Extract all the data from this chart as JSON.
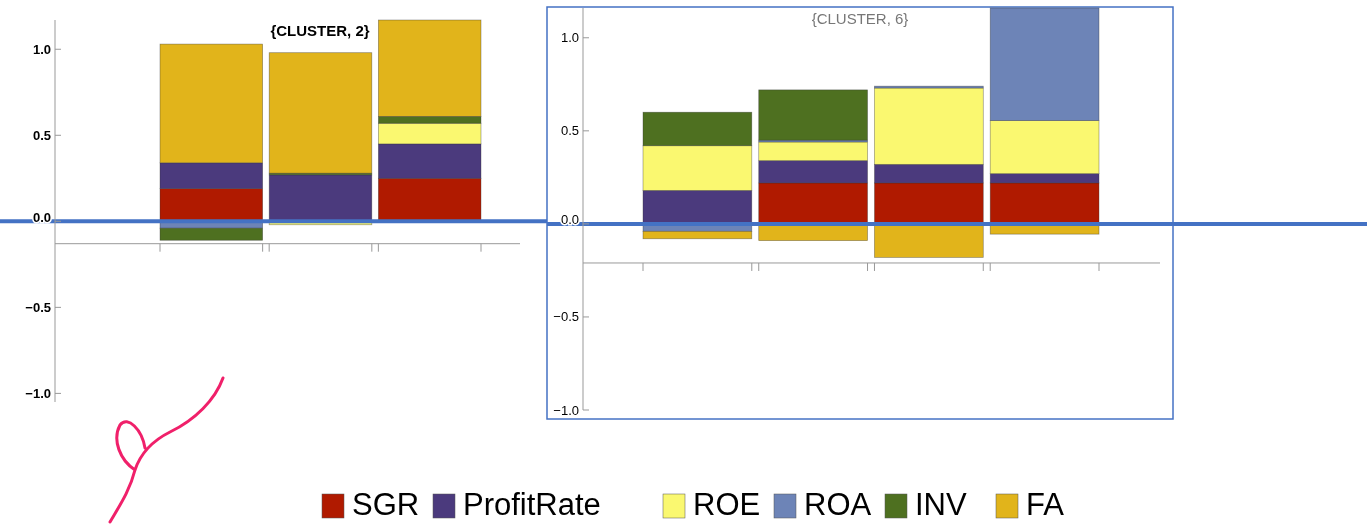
{
  "chart_data": [
    {
      "type": "bar",
      "title": "{CLUSTER, 2}",
      "stacked": true,
      "categories": [
        null,
        null,
        null
      ],
      "ylim": [
        -1.05,
        1.17
      ],
      "yticks": [
        {
          "value": -1,
          "label": "−1.0"
        },
        {
          "value": -0.5,
          "label": "−0.5"
        },
        {
          "value": 0,
          "label": "0.0"
        },
        {
          "value": 0.5,
          "label": "0.5"
        },
        {
          "value": 1,
          "label": "1.0"
        }
      ],
      "series": [
        {
          "color": "#b01a00",
          "values": [
            0.19,
            null,
            0.25
          ]
        },
        {
          "color": "#4b3a7d",
          "values": [
            0.15,
            0.27,
            0.2
          ]
        },
        {
          "color": "#faf870",
          "values": [
            null,
            -0.02,
            0.12
          ]
        },
        {
          "color": "#6d84b7",
          "values": [
            -0.04,
            0.0,
            0.0
          ]
        },
        {
          "color": "#4e7020",
          "values": [
            -0.07,
            0.01,
            0.04
          ]
        },
        {
          "color": "#e1b41b",
          "values": [
            0.69,
            0.7,
            0.56
          ]
        }
      ],
      "ref_lines": [
        {
          "axis": "y",
          "value": 0,
          "color": "#4472c4"
        },
        {
          "axis": "y",
          "value": -0.13,
          "color": "#999999"
        }
      ]
    },
    {
      "type": "bar",
      "title": "{CLUSTER, 6}",
      "stacked": true,
      "categories": [
        null,
        null,
        null,
        null
      ],
      "ylim": [
        -1.0,
        1.16
      ],
      "yticks": [
        {
          "value": -1,
          "label": "−1.0"
        },
        {
          "value": -0.5,
          "label": "−0.5"
        },
        {
          "value": 0,
          "label": "0.0"
        },
        {
          "value": 0.5,
          "label": "0.5"
        },
        {
          "value": 1,
          "label": "1.0"
        }
      ],
      "legend": "bottom",
      "series": [
        {
          "name": "SGR",
          "color": "#b01a00",
          "values": [
            null,
            0.22,
            0.22,
            0.22
          ]
        },
        {
          "name": "ProfitRate",
          "color": "#4b3a7d",
          "values": [
            0.18,
            0.12,
            0.1,
            0.05
          ]
        },
        {
          "name": "ROE",
          "color": "#faf870",
          "values": [
            0.24,
            0.1,
            0.41,
            0.285
          ]
        },
        {
          "name": "ROA",
          "color": "#6d84b7",
          "values": [
            -0.04,
            0.01,
            0.01,
            0.605
          ]
        },
        {
          "name": "INV",
          "color": "#4e7020",
          "values": [
            0.18,
            0.27,
            null,
            0.0
          ]
        },
        {
          "name": "FA",
          "color": "#e1b41b",
          "values": [
            -0.04,
            -0.09,
            -0.18,
            -0.055
          ]
        }
      ],
      "ref_lines": [
        {
          "axis": "y",
          "value": 0,
          "color": "#4472c4"
        },
        {
          "axis": "y",
          "value": -0.21,
          "color": "#999999"
        }
      ]
    }
  ]
}
